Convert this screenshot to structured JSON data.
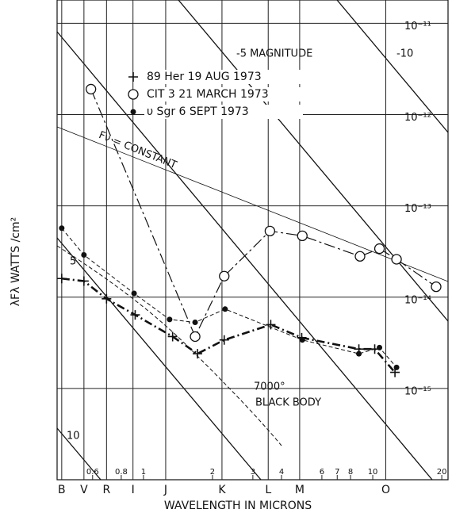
{
  "chart_data": {
    "type": "scatter",
    "y_label": "λFλ  WATTS /cm²",
    "x_label": "WAVELENGTH IN MICRONS",
    "log_x": true,
    "log_y": true,
    "xlim": [
      0.42,
      21.3
    ],
    "ylim": [
      1e-16,
      1.8e-11
    ],
    "xticks": [
      0.6,
      0.8,
      1,
      2,
      3,
      4,
      6,
      7,
      8,
      10,
      20
    ],
    "yticks": [
      {
        "value": 1e-11,
        "label": "10⁻¹¹"
      },
      {
        "value": 1e-12,
        "label": "10⁻¹²"
      },
      {
        "value": 1e-13,
        "label": "10⁻¹³"
      },
      {
        "value": 1e-14,
        "label": "10⁻¹⁴"
      },
      {
        "value": 1e-15,
        "label": "10⁻¹⁵"
      }
    ],
    "band_labels": [
      "B",
      "V",
      "R",
      "I",
      "J",
      "K",
      "L",
      "M",
      "O"
    ],
    "band_wavelengths": [
      0.44,
      0.55,
      0.69,
      0.9,
      1.25,
      2.2,
      3.5,
      4.8,
      11.4
    ],
    "annotations": [
      "-5 MAGNITUDE",
      "-10",
      "5",
      "10",
      "Fν = CONSTANT",
      "7000°",
      "BLACK BODY"
    ],
    "series": [
      {
        "name": "89 Her   19 AUG 1973",
        "marker": "plus",
        "color": "#111",
        "x": [
          0.44,
          0.55,
          0.69,
          0.92,
          1.34,
          1.72,
          2.25,
          3.59,
          4.9,
          8.7,
          10.2,
          12.5
        ],
        "values": [
          1.6e-14,
          1.5e-14,
          9.6e-15,
          6.4e-15,
          3.7e-15,
          2.4e-15,
          3.4e-15,
          5e-15,
          3.6e-15,
          2.7e-15,
          2.7e-15,
          1.5e-15
        ]
      },
      {
        "name": "CIT  3  21 MARCH 1973",
        "marker": "circle",
        "color": "#111",
        "x": [
          0.59,
          1.68,
          2.25,
          3.56,
          4.93,
          8.8,
          10.7,
          12.7,
          18.9
        ],
        "values": [
          1.9e-12,
          3.7e-15,
          1.7e-14,
          5.3e-14,
          4.7e-14,
          2.8e-14,
          3.4e-14,
          2.6e-14,
          1.3e-14
        ]
      },
      {
        "name": "υ Sgr  6  SEPT  1973",
        "marker": "dot",
        "color": "#111",
        "x": [
          0.44,
          0.55,
          0.91,
          1.3,
          1.68,
          2.27,
          4.93,
          8.7,
          10.7,
          12.7
        ],
        "values": [
          5.7e-14,
          2.9e-14,
          1.1e-14,
          5.7e-15,
          5.3e-15,
          7.4e-15,
          3.4e-15,
          2.4e-15,
          2.8e-15,
          1.7e-15
        ]
      }
    ]
  }
}
